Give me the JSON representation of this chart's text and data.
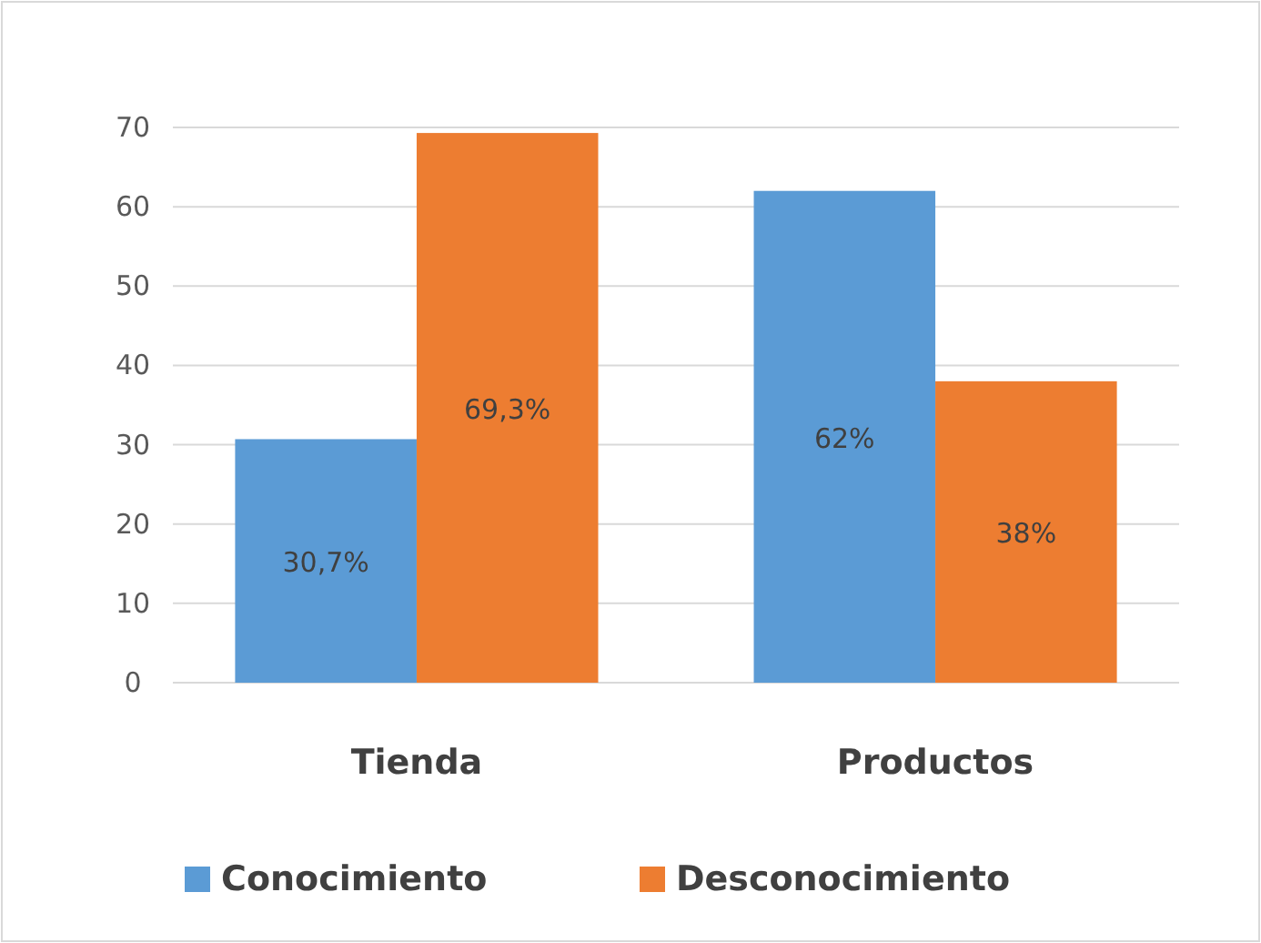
{
  "chart_data": {
    "type": "bar",
    "categories": [
      "Tienda",
      "Productos"
    ],
    "series": [
      {
        "name": "Conocimiento",
        "color": "#5b9bd5",
        "values": [
          30.7,
          62
        ],
        "value_labels": [
          "30,7%",
          "62%"
        ]
      },
      {
        "name": "Desconocimiento",
        "color": "#ed7d31",
        "values": [
          69.3,
          38
        ],
        "value_labels": [
          "69,3%",
          "38%"
        ]
      }
    ],
    "ylim": [
      0,
      70
    ],
    "yticks": [
      0,
      10,
      20,
      30,
      40,
      50,
      60,
      70
    ],
    "grid": "y",
    "legend": "bottom"
  }
}
